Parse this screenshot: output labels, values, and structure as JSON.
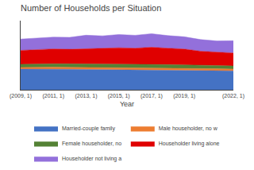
{
  "chart_data": {
    "type": "area",
    "stacked": true,
    "title": "Number of Households per Situation",
    "xlabel": "Year",
    "x": [
      2009,
      2010,
      2011,
      2012,
      2013,
      2014,
      2015,
      2016,
      2017,
      2018,
      2019,
      2020,
      2021,
      2022
    ],
    "series": [
      {
        "name": "Married-couple family",
        "color": "#4472c4",
        "values": [
          33000,
          33200,
          33100,
          32800,
          32500,
          32300,
          32000,
          31800,
          31600,
          31400,
          31200,
          31000,
          30600,
          30200
        ]
      },
      {
        "name": "Male householder, no w",
        "color": "#ed7d31",
        "values": [
          2800,
          3000,
          3100,
          3200,
          3300,
          3400,
          3500,
          3600,
          3500,
          3400,
          3300,
          3200,
          3100,
          3000
        ]
      },
      {
        "name": "Female householder, no",
        "color": "#548235",
        "values": [
          5000,
          5200,
          5400,
          5500,
          5600,
          5700,
          6000,
          5900,
          5700,
          5500,
          5400,
          5300,
          5100,
          4900
        ]
      },
      {
        "name": "Householder living alone",
        "color": "#e00000",
        "values": [
          22000,
          22500,
          23500,
          23000,
          24000,
          24500,
          25500,
          25000,
          27000,
          26000,
          25000,
          22000,
          21000,
          20500
        ]
      },
      {
        "name": "Householder not living a",
        "color": "#9370db",
        "values": [
          18000,
          18500,
          18800,
          19000,
          21500,
          20000,
          21000,
          20500,
          21500,
          20000,
          19500,
          18500,
          18000,
          19500
        ]
      }
    ],
    "xlim": [
      2009,
      2022
    ],
    "xticks": [
      {
        "value": 2009,
        "label": "(2009, 1)"
      },
      {
        "value": 2011,
        "label": "(2011, 1)"
      },
      {
        "value": 2013,
        "label": "(2013, 1)"
      },
      {
        "value": 2015,
        "label": "(2015, 1)"
      },
      {
        "value": 2017,
        "label": "(2017, 1)"
      },
      {
        "value": 2019,
        "label": "(2019, 1)"
      },
      {
        "value": 2022,
        "label": "(2022, 1)"
      }
    ],
    "ylim": [
      0,
      110000
    ],
    "tick_labels": "x",
    "grid": false,
    "legend": "bottom"
  }
}
